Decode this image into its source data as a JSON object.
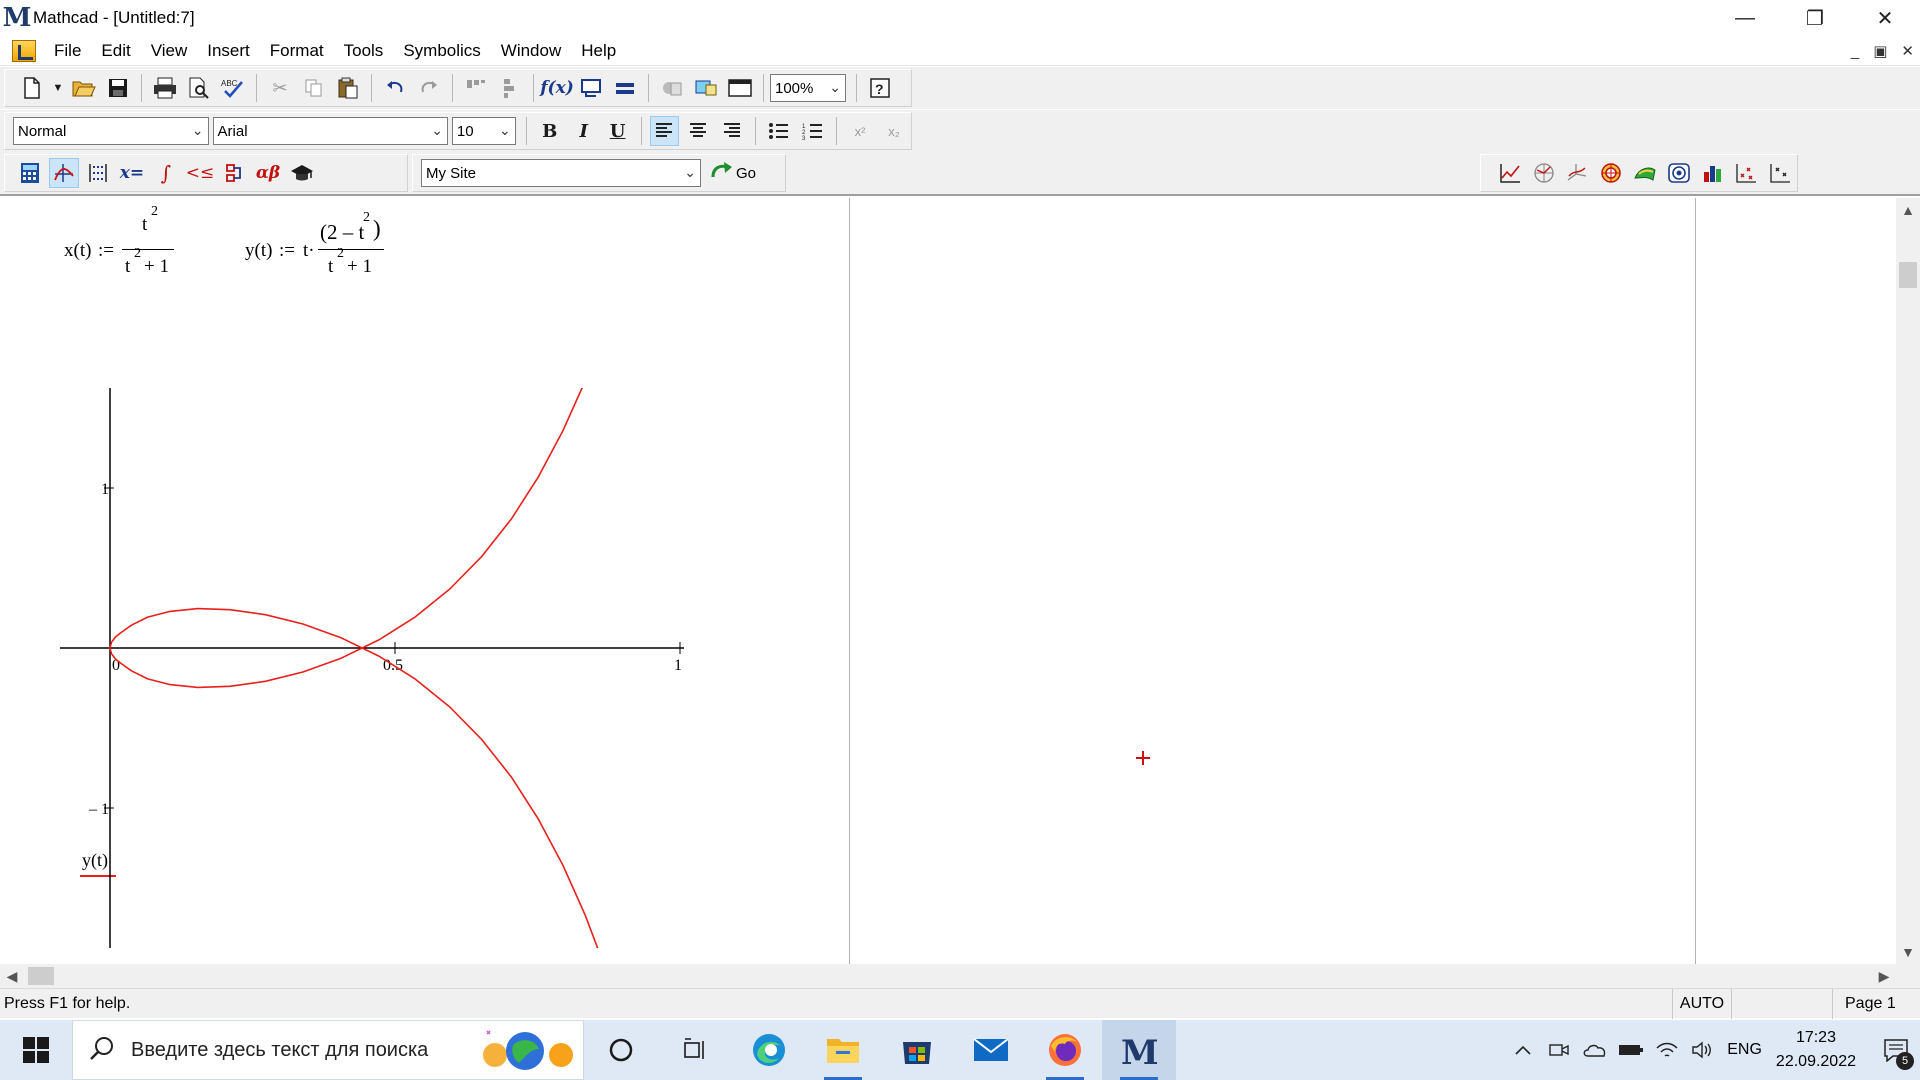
{
  "window": {
    "title": "Mathcad - [Untitled:7]",
    "controls": {
      "minimize": "—",
      "restore": "❐",
      "close": "✕"
    }
  },
  "menu": {
    "items": [
      "File",
      "Edit",
      "View",
      "Insert",
      "Format",
      "Tools",
      "Symbolics",
      "Window",
      "Help"
    ],
    "mdi_controls": [
      "_",
      "▣",
      "✕"
    ]
  },
  "toolbar_standard": {
    "zoom": "100%"
  },
  "toolbar_formatting": {
    "style": "Normal",
    "font": "Arial",
    "size": "10",
    "bold": "B",
    "italic": "I",
    "underline": "U"
  },
  "toolbar_math": {
    "resource_combo": "My Site",
    "go_label": "Go"
  },
  "worksheet": {
    "x_def": {
      "lhs": "x(t)",
      "assign": ":=",
      "numer": "t",
      "numer_exp": "2",
      "denom": "t",
      "denom_exp": "2",
      "denom_rest": "+ 1"
    },
    "y_def": {
      "lhs": "y(t)",
      "assign": ":=",
      "factor": "t·",
      "numer": "(2 – t",
      "numer_exp": "2",
      "numer_close": ")",
      "denom": "t",
      "denom_exp": "2",
      "denom_rest": "+ 1"
    },
    "plot_ylabel": "y(t)"
  },
  "chart_data": {
    "type": "line",
    "title": "",
    "xlabel": "",
    "ylabel": "y(t)",
    "xlim": [
      0,
      1
    ],
    "ylim": [
      -2,
      2
    ],
    "x_ticks": [
      "0",
      "0.5",
      "1"
    ],
    "y_ticks": [
      "2",
      "1",
      "– 1",
      "– 2"
    ],
    "grid": false,
    "series": [
      {
        "color": "#e8201c",
        "x": [
          0.8687,
          0.8333,
          0.7945,
          0.7516,
          0.7043,
          0.6525,
          0.5962,
          0.5357,
          0.4717,
          0.4054,
          0.3385,
          0.2727,
          0.2104,
          0.1538,
          0.1052,
          0.0661,
          0.0376,
          0.0192,
          0.0099,
          0.0025,
          0,
          0.0025,
          0.0099,
          0.0192,
          0.0376,
          0.0661,
          0.1052,
          0.1538,
          0.2104,
          0.2727,
          0.3385,
          0.4054,
          0.4717,
          0.5357,
          0.5962,
          0.6525,
          0.7043,
          0.7516,
          0.7945,
          0.8333,
          0.8687
        ],
        "y": [
          -2.0,
          -1.6667,
          -1.3578,
          -1.0701,
          -0.8076,
          -0.5733,
          -0.3687,
          -0.1944,
          -0.0506,
          0.0637,
          0.1497,
          0.2083,
          0.2393,
          0.2462,
          0.229,
          0.1929,
          0.1426,
          0.0962,
          0.0691,
          0.035,
          0,
          -0.035,
          -0.0691,
          -0.0962,
          -0.1426,
          -0.1929,
          -0.229,
          -0.2462,
          -0.2393,
          -0.2083,
          -0.1497,
          -0.0637,
          0.0506,
          0.1944,
          0.3687,
          0.5733,
          0.8076,
          1.0701,
          1.3578,
          1.6667,
          2.0
        ]
      }
    ]
  },
  "statusbar": {
    "help": "Press F1 for help.",
    "mode": "AUTO",
    "page": "Page 1"
  },
  "taskbar": {
    "search_placeholder": "Введите здесь текст для поиска",
    "language": "ENG",
    "time": "17:23",
    "date": "22.09.2022",
    "notification_count": "5"
  }
}
